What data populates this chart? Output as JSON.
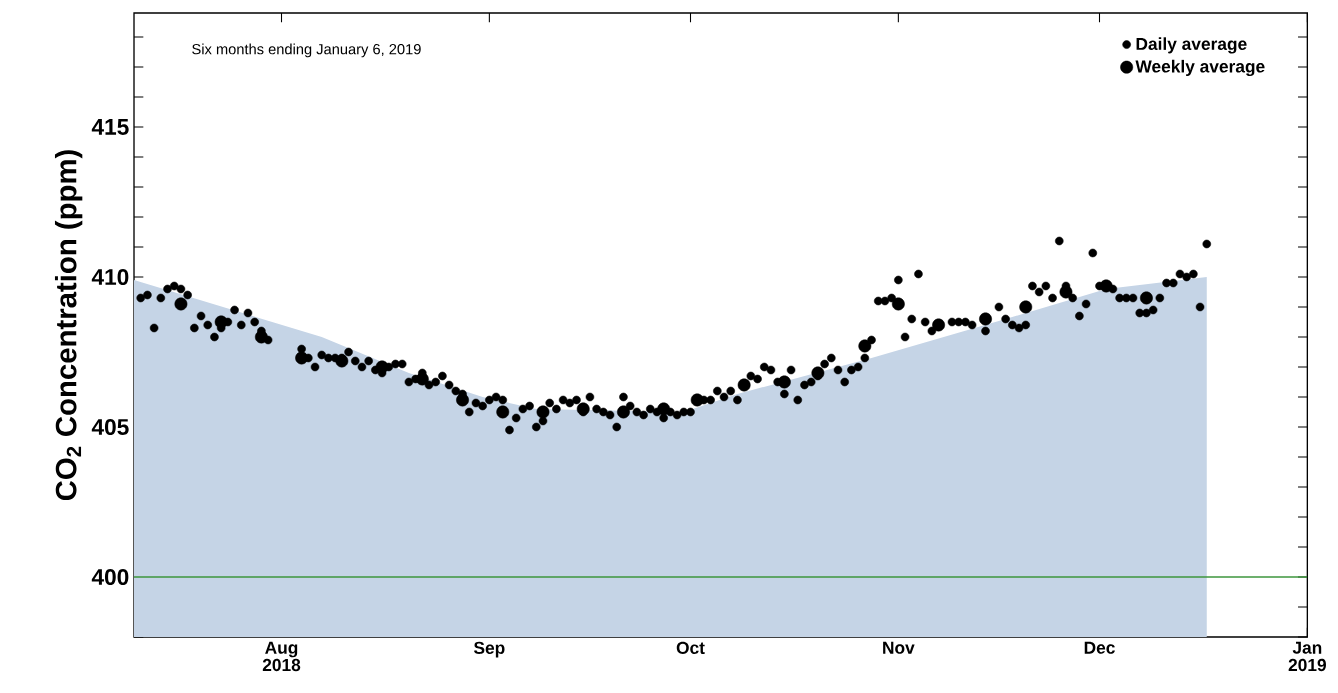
{
  "chart_data": {
    "type": "scatter",
    "ylabel": "CO$_{2}$ Concentration (ppm)",
    "annotations": [
      "Six months ending January 6, 2019"
    ],
    "xlim": [
      "2018-07-10",
      "2019-01-01"
    ],
    "xticks": [
      {
        "value": "2018-08-01",
        "label": "Aug 2018"
      },
      {
        "value": "2018-09-01",
        "label": "Sep"
      },
      {
        "value": "2018-10-01",
        "label": "Oct"
      },
      {
        "value": "2018-11-01",
        "label": "Nov"
      },
      {
        "value": "2018-12-01",
        "label": "Dec"
      },
      {
        "value": "2019-01-01",
        "label": "Jan 2019"
      }
    ],
    "ylim": [
      398,
      418.8
    ],
    "yticks": [
      {
        "value": 398,
        "label": null
      },
      {
        "value": 399,
        "label": null
      },
      400,
      {
        "value": 401,
        "label": null
      },
      {
        "value": 402,
        "label": null
      },
      {
        "value": 403,
        "label": null
      },
      {
        "value": 404,
        "label": null
      },
      405,
      {
        "value": 406,
        "label": null
      },
      {
        "value": 407,
        "label": null
      },
      {
        "value": 408,
        "label": null
      },
      {
        "value": 409,
        "label": null
      },
      410,
      {
        "value": 411,
        "label": null
      },
      {
        "value": 412,
        "label": null
      },
      {
        "value": 413,
        "label": null
      },
      {
        "value": 414,
        "label": null
      },
      415,
      {
        "value": 416,
        "label": null
      },
      {
        "value": 417,
        "label": null
      },
      {
        "value": 418,
        "label": null
      }
    ],
    "legend": "top right",
    "ref_lines": [
      {
        "axis": "y",
        "value": 400,
        "color": "#3c963c"
      }
    ],
    "series": [
      {
        "type": "area",
        "marker": "none",
        "color": "#c5d4e6",
        "x": [
          "2018-07-10",
          "2018-08-07",
          "2018-08-20",
          "2018-08-31",
          "2018-09-08",
          "2018-09-30",
          "2018-10-08",
          "2018-10-28",
          "2018-11-17",
          "2018-12-02",
          "2018-12-17"
        ],
        "values": [
          409.9,
          408.0,
          406.8,
          406.0,
          405.6,
          405.5,
          406.1,
          407.3,
          408.6,
          409.6,
          410.0
        ]
      },
      {
        "name": "Daily average",
        "marker": "circle",
        "color": "#000000",
        "x": [
          "2018-07-11",
          "2018-07-12",
          "2018-07-13",
          "2018-07-14",
          "2018-07-15",
          "2018-07-16",
          "2018-07-17",
          "2018-07-18",
          "2018-07-19",
          "2018-07-20",
          "2018-07-21",
          "2018-07-22",
          "2018-07-23",
          "2018-07-24",
          "2018-07-25",
          "2018-07-26",
          "2018-07-27",
          "2018-07-28",
          "2018-07-29",
          "2018-07-30",
          "2018-08-04",
          "2018-08-05",
          "2018-08-06",
          "2018-08-07",
          "2018-08-08",
          "2018-08-09",
          "2018-08-10",
          "2018-08-11",
          "2018-08-12",
          "2018-08-13",
          "2018-08-14",
          "2018-08-15",
          "2018-08-16",
          "2018-08-17",
          "2018-08-18",
          "2018-08-19",
          "2018-08-20",
          "2018-08-21",
          "2018-08-22",
          "2018-08-23",
          "2018-08-24",
          "2018-08-25",
          "2018-08-26",
          "2018-08-27",
          "2018-08-28",
          "2018-08-29",
          "2018-08-30",
          "2018-08-31",
          "2018-09-01",
          "2018-09-02",
          "2018-09-03",
          "2018-09-04",
          "2018-09-05",
          "2018-09-06",
          "2018-09-07",
          "2018-09-08",
          "2018-09-09",
          "2018-09-10",
          "2018-09-11",
          "2018-09-12",
          "2018-09-13",
          "2018-09-14",
          "2018-09-15",
          "2018-09-16",
          "2018-09-17",
          "2018-09-18",
          "2018-09-19",
          "2018-09-20",
          "2018-09-21",
          "2018-09-22",
          "2018-09-23",
          "2018-09-24",
          "2018-09-25",
          "2018-09-26",
          "2018-09-27",
          "2018-09-28",
          "2018-09-29",
          "2018-09-30",
          "2018-10-01",
          "2018-10-03",
          "2018-10-04",
          "2018-10-05",
          "2018-10-06",
          "2018-10-07",
          "2018-10-08",
          "2018-10-10",
          "2018-10-11",
          "2018-10-12",
          "2018-10-13",
          "2018-10-14",
          "2018-10-15",
          "2018-10-16",
          "2018-10-17",
          "2018-10-18",
          "2018-10-19",
          "2018-10-20",
          "2018-10-21",
          "2018-10-22",
          "2018-10-23",
          "2018-10-24",
          "2018-10-25",
          "2018-10-26",
          "2018-10-27",
          "2018-10-28",
          "2018-10-29",
          "2018-10-30",
          "2018-10-31",
          "2018-11-01",
          "2018-11-02",
          "2018-11-03",
          "2018-11-04",
          "2018-11-05",
          "2018-11-06",
          "2018-11-09",
          "2018-11-10",
          "2018-11-11",
          "2018-11-12",
          "2018-11-14",
          "2018-11-16",
          "2018-11-17",
          "2018-11-18",
          "2018-11-19",
          "2018-11-20",
          "2018-11-21",
          "2018-11-22",
          "2018-11-23",
          "2018-11-24",
          "2018-11-25",
          "2018-11-26",
          "2018-11-27",
          "2018-11-28",
          "2018-11-29",
          "2018-11-30",
          "2018-12-01",
          "2018-12-03",
          "2018-12-04",
          "2018-12-05",
          "2018-12-06",
          "2018-12-07",
          "2018-12-08",
          "2018-12-09",
          "2018-12-10",
          "2018-12-11",
          "2018-12-12",
          "2018-12-13",
          "2018-12-14",
          "2018-12-15",
          "2018-12-16",
          "2018-12-17"
        ],
        "values": [
          409.3,
          409.4,
          408.3,
          409.3,
          409.6,
          409.7,
          409.6,
          409.4,
          408.3,
          408.7,
          408.4,
          408.0,
          408.3,
          408.5,
          408.9,
          408.4,
          408.8,
          408.5,
          408.2,
          407.9,
          407.6,
          407.3,
          407.0,
          407.4,
          407.3,
          407.3,
          407.3,
          407.5,
          407.2,
          407.0,
          407.2,
          406.9,
          406.8,
          407.0,
          407.1,
          407.1,
          406.5,
          406.6,
          406.8,
          406.4,
          406.5,
          406.7,
          406.4,
          406.2,
          406.1,
          405.5,
          405.8,
          405.7,
          405.9,
          406.0,
          405.9,
          404.9,
          405.3,
          405.6,
          405.7,
          405.0,
          405.2,
          405.8,
          405.6,
          405.9,
          405.8,
          405.9,
          405.5,
          406.0,
          405.6,
          405.5,
          405.4,
          405.0,
          406.0,
          405.7,
          405.5,
          405.4,
          405.6,
          405.5,
          405.3,
          405.5,
          405.4,
          405.5,
          405.5,
          405.9,
          405.9,
          406.2,
          406.0,
          406.2,
          405.9,
          406.7,
          406.6,
          407.0,
          406.9,
          406.5,
          406.1,
          406.9,
          405.9,
          406.4,
          406.5,
          406.7,
          407.1,
          407.3,
          406.9,
          406.5,
          406.9,
          407.0,
          407.3,
          407.9,
          409.2,
          409.2,
          409.3,
          409.9,
          408.0,
          408.6,
          410.1,
          408.5,
          408.2,
          408.5,
          408.5,
          408.5,
          408.4,
          408.2,
          409.0,
          408.6,
          408.4,
          408.3,
          408.4,
          409.7,
          409.5,
          409.7,
          409.3,
          411.2,
          409.7,
          409.3,
          408.7,
          409.1,
          410.8,
          409.7,
          409.6,
          409.3,
          409.3,
          409.3,
          408.8,
          408.8,
          408.9,
          409.3,
          409.8,
          409.8,
          410.1,
          410.0,
          410.1,
          409.0,
          411.1
        ]
      },
      {
        "name": "Weekly average",
        "marker": "circle",
        "color": "#000000",
        "x": [
          "2018-07-17",
          "2018-07-23",
          "2018-07-29",
          "2018-08-04",
          "2018-08-10",
          "2018-08-16",
          "2018-08-22",
          "2018-08-28",
          "2018-09-03",
          "2018-09-09",
          "2018-09-15",
          "2018-09-21",
          "2018-09-27",
          "2018-10-02",
          "2018-10-09",
          "2018-10-15",
          "2018-10-20",
          "2018-10-27",
          "2018-11-01",
          "2018-11-07",
          "2018-11-14",
          "2018-11-20",
          "2018-11-26",
          "2018-12-02",
          "2018-12-08"
        ],
        "values": [
          409.1,
          408.5,
          408.0,
          407.3,
          407.2,
          407.0,
          406.6,
          405.9,
          405.5,
          405.5,
          405.6,
          405.5,
          405.6,
          405.9,
          406.4,
          406.5,
          406.8,
          407.7,
          409.1,
          408.4,
          408.6,
          409.0,
          409.5,
          409.7,
          409.3
        ]
      }
    ]
  }
}
